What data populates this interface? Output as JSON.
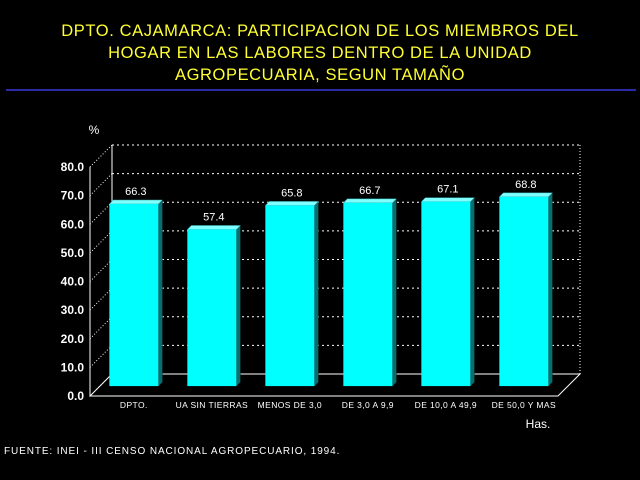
{
  "title_lines": [
    "DPTO. CAJAMARCA: PARTICIPACION DE LOS MIEMBROS DEL",
    "HOGAR EN LAS LABORES DENTRO DE LA UNIDAD",
    "AGROPECUARIA, SEGUN TAMAÑO"
  ],
  "source": "FUENTE: INEI - III CENSO NACIONAL AGROPECUARIO, 1994.",
  "colors": {
    "title": "#ffff33",
    "rule": "#2a2aa6",
    "bar_front": "#00ffff",
    "axis": "#ffffff"
  },
  "chart_data": {
    "type": "bar",
    "ylabel": "%",
    "xlabel": "Has.",
    "ylim": [
      0,
      80
    ],
    "y_ticks": [
      "0.0",
      "10.0",
      "20.0",
      "30.0",
      "40.0",
      "50.0",
      "60.0",
      "70.0",
      "80.0"
    ],
    "grid": true,
    "categories": [
      "DPTO.",
      "UA SIN TIERRAS",
      "MENOS DE 3,0",
      "DE 3,0 A 9,9",
      "DE 10,0 A 49,9",
      "DE 50,0 Y MAS"
    ],
    "values": [
      66.3,
      57.4,
      65.8,
      66.7,
      67.1,
      68.8
    ],
    "value_labels": [
      "66.3",
      "57.4",
      "65.8",
      "66.7",
      "67.1",
      "68.8"
    ]
  }
}
